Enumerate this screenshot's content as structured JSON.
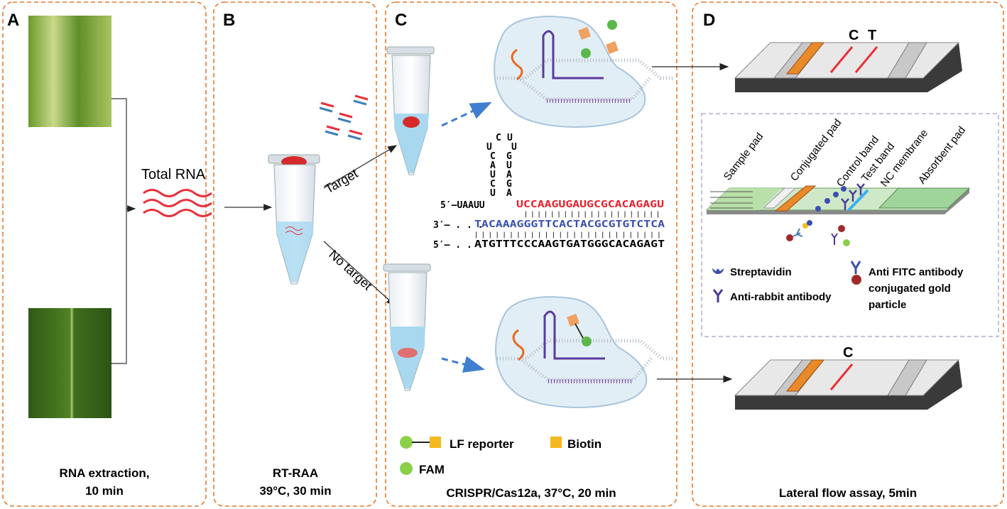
{
  "panels": {
    "A": {
      "letter": "A",
      "caption_line1": "RNA extraction,",
      "caption_line2": "10 min",
      "total_rna": "Total RNA"
    },
    "B": {
      "letter": "B",
      "caption_line1": "RT-RAA",
      "caption_line2": "39°C, 30 min",
      "target": "Target",
      "no_target": "No target"
    },
    "C": {
      "letter": "C",
      "caption": "CRISPR/Cas12a, 37°C,  20 min",
      "stem_left": [
        "C",
        "U",
        "C",
        "A",
        "U",
        "C",
        "U"
      ],
      "stem_right": [
        "U",
        "U",
        "G",
        "U",
        "A",
        "G",
        "A"
      ],
      "crrna_prefix": "5′–UAAUU",
      "crrna_spacer": "UCCAAGUGAUGCGCACAGAGU",
      "target_prefix": "3′– . . .",
      "target_strand": "TACAAAGGGTTCACTACGCGTGTCTCA",
      "nontarget_prefix": "5′– . . .",
      "nontarget_strand": "ATGTTTCCCAAGTGATGGGCACAGAGT",
      "legend_lf": "LF reporter",
      "legend_biotin": "Biotin",
      "legend_fam": "FAM"
    },
    "D": {
      "letter": "D",
      "caption": "Lateral flow assay,  5min",
      "band_c": "C",
      "band_t": "T",
      "band_c_neg": "C",
      "strip_labels": [
        "Sample pad",
        "Conjugated pad",
        "Control  band",
        "Test  band",
        "NC membrane",
        "Absorbent pad"
      ],
      "legend_streptavidin": "Streptavidin",
      "legend_anti_rabbit": "Anti-rabbit antibody",
      "legend_anti_fitc_1": "Anti FITC antibody",
      "legend_anti_fitc_2": "conjugated gold",
      "legend_anti_fitc_3": "particle"
    }
  },
  "colors": {
    "border": "#e8782a",
    "red_seq": "#e8202a",
    "blue_seq": "#3a4fb0",
    "arrow_dash": "#3f7fcf",
    "band": "#e8303a",
    "orange_pad": "#e98a2a",
    "green_pad": "#9fd49a"
  }
}
